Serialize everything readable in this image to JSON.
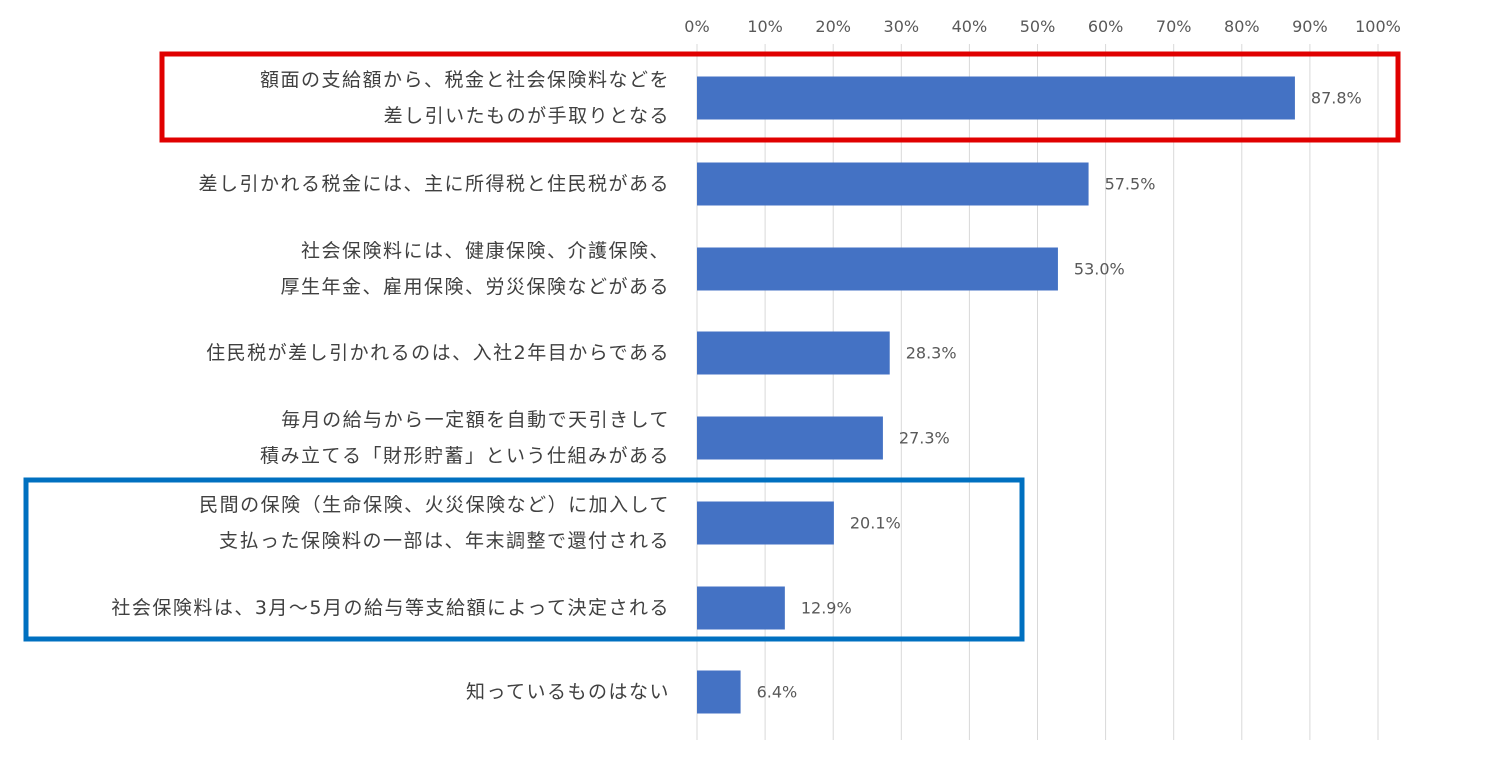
{
  "chart_data": {
    "type": "bar",
    "orientation": "horizontal",
    "x_axis_position": "top",
    "grid": true,
    "xlim": [
      0,
      100
    ],
    "ticks": [
      "0%",
      "10%",
      "20%",
      "30%",
      "40%",
      "50%",
      "60%",
      "70%",
      "80%",
      "90%",
      "100%"
    ],
    "categories": [
      [
        "額面の支給額から、税金と社会保険料などを",
        "差し引いたものが手取りとなる"
      ],
      [
        "差し引かれる税金には、主に所得税と住民税がある"
      ],
      [
        "社会保険料には、健康保険、介護保険、",
        "厚生年金、雇用保険、労災保険などがある"
      ],
      [
        "住民税が差し引かれるのは、入社2年目からである"
      ],
      [
        "毎月の給与から一定額を自動で天引きして",
        "積み立てる「財形貯蓄」という仕組みがある"
      ],
      [
        "民間の保険（生命保険、火災保険など）に加入して",
        "支払った保険料の一部は、年末調整で還付される"
      ],
      [
        "社会保険料は、3月～5月の給与等支給額によって決定される"
      ],
      [
        "知っているものはない"
      ]
    ],
    "values": [
      87.8,
      57.5,
      53.0,
      28.3,
      27.3,
      20.1,
      12.9,
      6.4
    ],
    "data_labels": [
      "87.8%",
      "57.5%",
      "53.0%",
      "28.3%",
      "27.3%",
      "20.1%",
      "12.9%",
      "6.4%"
    ],
    "highlights": [
      {
        "color": "red",
        "covers": [
          0
        ]
      },
      {
        "color": "blue",
        "covers": [
          5,
          6
        ]
      }
    ]
  },
  "colors": {
    "bar": "#4472c4",
    "grid": "#d9d9d9",
    "text": "#404040",
    "label_text": "#595959",
    "highlight_red": "#e00000",
    "highlight_blue": "#0070c0"
  }
}
